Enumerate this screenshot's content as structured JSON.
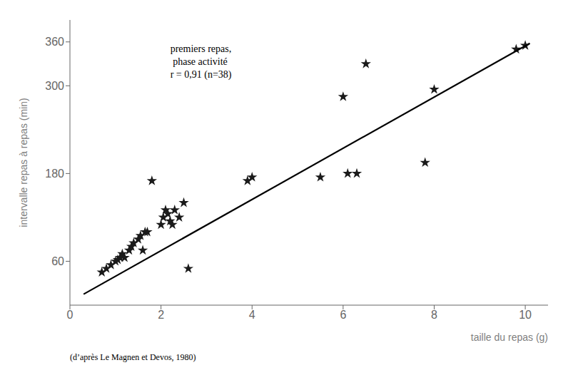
{
  "chart_data": {
    "type": "scatter",
    "xlabel": "taille du repas (g)",
    "ylabel": "intervalle repas à repas (min)",
    "annotation": "premiers repas,\n phase activité\nr = 0,91 (n=38)",
    "caption": "(d’après Le Magnen et Devos, 1980)",
    "xlim": [
      0,
      10.5
    ],
    "ylim": [
      0,
      390
    ],
    "xticks": [
      0,
      2,
      4,
      6,
      8,
      10
    ],
    "yticks": [
      60,
      180,
      300,
      360
    ],
    "series": [
      {
        "type": "scatter",
        "marker": "star",
        "color": "#1a1a1a",
        "x": [
          0.7,
          0.8,
          0.9,
          1.0,
          1.05,
          1.1,
          1.15,
          1.2,
          1.3,
          1.35,
          1.4,
          1.5,
          1.55,
          1.6,
          1.65,
          1.7,
          1.8,
          2.0,
          2.05,
          2.1,
          2.15,
          2.2,
          2.25,
          2.3,
          2.4,
          2.5,
          2.6,
          3.9,
          4.0,
          5.5,
          6.0,
          6.1,
          6.3,
          6.5,
          7.8,
          8.0,
          9.8,
          10.0
        ],
        "y": [
          45,
          50,
          55,
          60,
          62,
          65,
          70,
          65,
          75,
          80,
          85,
          90,
          95,
          75,
          100,
          100,
          170,
          110,
          120,
          130,
          125,
          115,
          110,
          130,
          120,
          140,
          50,
          170,
          175,
          175,
          285,
          180,
          180,
          330,
          195,
          295,
          350,
          355
        ]
      },
      {
        "type": "line",
        "color": "#000000",
        "x": [
          0.3,
          10.1
        ],
        "y": [
          15,
          358
        ]
      }
    ]
  }
}
